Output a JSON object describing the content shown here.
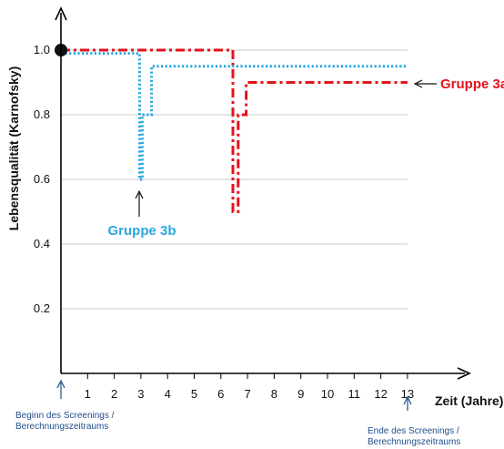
{
  "chart_data": {
    "type": "line",
    "xlabel": "Zeit (Jahre)",
    "ylabel": "Lebensqualität (Karnofsky)",
    "xlim": [
      0,
      13
    ],
    "ylim": [
      0,
      1.0
    ],
    "x_ticks": [
      1,
      2,
      3,
      4,
      5,
      6,
      7,
      8,
      9,
      10,
      11,
      12,
      13
    ],
    "y_ticks": [
      0.2,
      0.4,
      0.6,
      0.8,
      1.0
    ],
    "y_tick_labels": [
      "0.2",
      "0.4",
      "0.6",
      "0.8",
      "1.0"
    ],
    "grid": "horizontal",
    "start_point": {
      "x": 0,
      "y": 1.0
    },
    "series": [
      {
        "name": "Gruppe 3a",
        "color": "#e3131b",
        "style": "dash-dot",
        "step_points": [
          [
            0,
            1.0
          ],
          [
            6.45,
            1.0
          ],
          [
            6.45,
            0.5
          ],
          [
            6.65,
            0.5
          ],
          [
            6.65,
            0.8
          ],
          [
            6.95,
            0.8
          ],
          [
            6.95,
            0.9
          ],
          [
            13,
            0.9
          ]
        ]
      },
      {
        "name": "Gruppe 3b",
        "color": "#2aa7e0",
        "style": "dotted",
        "step_points": [
          [
            0,
            0.99
          ],
          [
            2.95,
            0.99
          ],
          [
            2.95,
            0.6
          ],
          [
            3.05,
            0.6
          ],
          [
            3.05,
            0.8
          ],
          [
            3.4,
            0.8
          ],
          [
            3.4,
            0.95
          ],
          [
            13,
            0.95
          ]
        ]
      }
    ],
    "annotations": {
      "start": "Beginn des Screenings /\nBerechnungszeitraums",
      "end": "Ende des Screenings /\nBerechnungszeitraums",
      "group_a_label": "Gruppe 3a",
      "group_b_label": "Gruppe 3b"
    },
    "arrow_color": "#1f4e8c"
  }
}
